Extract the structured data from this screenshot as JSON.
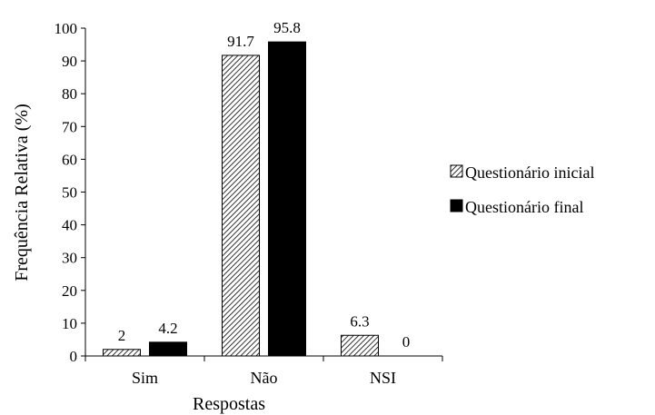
{
  "chart_data": {
    "type": "bar",
    "categories": [
      "Sim",
      "Não",
      "NSI"
    ],
    "series": [
      {
        "name": "Questionário inicial",
        "values": [
          2,
          91.7,
          6.3
        ],
        "value_labels": [
          "2",
          "91.7",
          "6.3"
        ],
        "color": "#ffffff",
        "pattern": "diagonal-hatch"
      },
      {
        "name": "Questionário final",
        "values": [
          4.2,
          95.8,
          0
        ],
        "value_labels": [
          "4.2",
          "95.8",
          "0"
        ],
        "color": "#000000",
        "pattern": "solid"
      }
    ],
    "xlabel": "Respostas",
    "ylabel": "Frequência Relativa (%)",
    "ylim": [
      0,
      100
    ],
    "yticks": [
      0,
      10,
      20,
      30,
      40,
      50,
      60,
      70,
      80,
      90,
      100
    ],
    "grid": false,
    "legend_position": "right"
  }
}
